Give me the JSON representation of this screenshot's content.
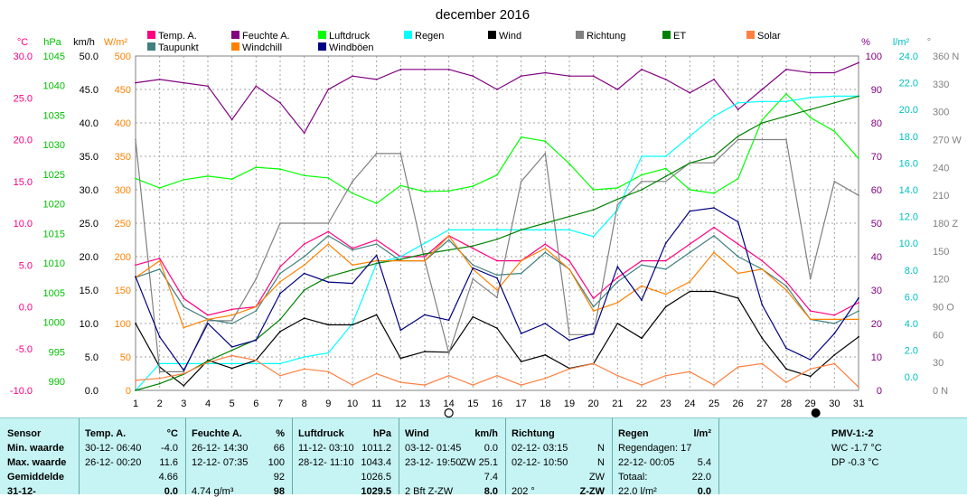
{
  "title": "december 2016",
  "legend": [
    {
      "label": "Temp. A.",
      "color": "#ff0080"
    },
    {
      "label": "Feuchte A.",
      "color": "#800080"
    },
    {
      "label": "Luftdruck",
      "color": "#00ff00"
    },
    {
      "label": "Regen",
      "color": "#00ffff"
    },
    {
      "label": "Wind",
      "color": "#000000"
    },
    {
      "label": "Richtung",
      "color": "#808080"
    },
    {
      "label": "ET",
      "color": "#008000"
    },
    {
      "label": "Solar",
      "color": "#ff8040"
    },
    {
      "label": "Taupunkt",
      "color": "#408080"
    },
    {
      "label": "Windchill",
      "color": "#ff8000"
    },
    {
      "label": "Windböen",
      "color": "#000080"
    }
  ],
  "axes": {
    "temp": {
      "unit": "°C",
      "color": "#ff0080",
      "ticks": [
        "30.0",
        "25.0",
        "20.0",
        "15.0",
        "10.0",
        "5.0",
        "0.0",
        "-5.0",
        "-10.0"
      ]
    },
    "hpa": {
      "unit": "hPa",
      "color": "#00c000",
      "ticks": [
        "1045",
        "1040",
        "1035",
        "1030",
        "1025",
        "1020",
        "1015",
        "1010",
        "1005",
        "1000",
        "995",
        "990"
      ]
    },
    "wind": {
      "unit": "km/h",
      "color": "#000000",
      "ticks": [
        "50.0",
        "45.0",
        "40.0",
        "35.0",
        "30.0",
        "25.0",
        "20.0",
        "15.0",
        "10.0",
        "5.0",
        "0.0"
      ]
    },
    "solar": {
      "unit": "W/m²",
      "color": "#ff8000",
      "ticks": [
        "500",
        "450",
        "400",
        "350",
        "300",
        "250",
        "200",
        "150",
        "100",
        "50",
        "0"
      ]
    },
    "pct": {
      "unit": "%",
      "color": "#800080",
      "ticks": [
        "100",
        "90",
        "80",
        "70",
        "60",
        "50",
        "40",
        "30",
        "20",
        "10",
        "0"
      ]
    },
    "rain": {
      "unit": "l/m²",
      "color": "#00c0c0",
      "ticks": [
        "24.0",
        "22.0",
        "20.0",
        "18.0",
        "16.0",
        "14.0",
        "12.0",
        "10.0",
        "8.0",
        "6.0",
        "4.0",
        "2.0",
        "0.0"
      ]
    },
    "dir": {
      "unit": "°",
      "color": "#808080",
      "ticks": [
        "360 N",
        "330",
        "300",
        "270 W",
        "240",
        "210",
        "180 Z",
        "150",
        "120",
        "90 O",
        "60",
        "30",
        "0 N"
      ]
    }
  },
  "chart_data": {
    "type": "line",
    "title": "december 2016",
    "x": [
      1,
      2,
      3,
      4,
      5,
      6,
      7,
      8,
      9,
      10,
      11,
      12,
      13,
      14,
      15,
      16,
      17,
      18,
      19,
      20,
      21,
      22,
      23,
      24,
      25,
      26,
      27,
      28,
      29,
      30,
      31
    ],
    "series": [
      {
        "name": "Temp. A.",
        "color": "#ff0080",
        "axis": "temp",
        "values": [
          5.0,
          5.8,
          1.0,
          -1.0,
          -0.3,
          0.0,
          4.8,
          7.5,
          9.0,
          7.0,
          8.0,
          6.0,
          6.0,
          8.5,
          7.0,
          5.5,
          5.5,
          7.5,
          5.5,
          1.0,
          3.5,
          5.5,
          5.5,
          7.5,
          9.5,
          7.5,
          5.5,
          3.0,
          -0.5,
          -1.0,
          0.5
        ]
      },
      {
        "name": "Feuchte A.",
        "color": "#800080",
        "axis": "pct",
        "values": [
          92,
          93,
          92,
          91,
          81,
          91,
          86,
          77,
          90,
          94,
          93,
          96,
          96,
          96,
          94,
          90,
          94,
          95,
          94,
          94,
          90,
          96,
          93,
          89,
          93,
          84,
          90,
          96,
          95,
          95,
          98
        ]
      },
      {
        "name": "Luftdruck",
        "color": "#00ff00",
        "axis": "hpa",
        "values": [
          1025.8,
          1024.2,
          1025.6,
          1026.2,
          1025.7,
          1027.7,
          1027.4,
          1026.3,
          1025.9,
          1023.3,
          1021.6,
          1024.6,
          1023.6,
          1023.7,
          1024.5,
          1026.4,
          1032.8,
          1032.1,
          1028.3,
          1023.9,
          1024.2,
          1026.4,
          1027.5,
          1023.9,
          1023.3,
          1025.8,
          1035.7,
          1040.1,
          1036.1,
          1033.8,
          1029.2
        ]
      },
      {
        "name": "Regen",
        "color": "#00ffff",
        "axis": "rain",
        "values": [
          0.0,
          2.0,
          2.0,
          2.0,
          2.0,
          2.0,
          2.0,
          2.5,
          2.8,
          5.0,
          9.5,
          10.0,
          11.0,
          12.0,
          12.0,
          12.0,
          12.0,
          12.0,
          12.0,
          11.5,
          13.5,
          17.5,
          17.5,
          19.0,
          20.5,
          21.5,
          21.6,
          21.6,
          21.9,
          22.0,
          22.0
        ]
      },
      {
        "name": "Wind",
        "color": "#000000",
        "axis": "wind",
        "values": [
          10.0,
          3.5,
          0.7,
          4.5,
          3.3,
          4.5,
          8.8,
          10.8,
          9.8,
          9.8,
          11.3,
          4.8,
          5.8,
          5.7,
          11.0,
          9.3,
          4.3,
          5.3,
          3.3,
          4.0,
          10.0,
          7.8,
          12.5,
          14.8,
          14.8,
          13.8,
          7.8,
          3.2,
          2.1,
          5.3,
          8.0
        ]
      },
      {
        "name": "Richtung",
        "color": "#808080",
        "axis": "dir",
        "values": [
          270,
          20,
          20,
          75,
          75,
          120,
          180,
          180,
          180,
          225,
          255,
          255,
          140,
          40,
          120,
          100,
          225,
          255,
          60,
          60,
          200,
          225,
          225,
          245,
          245,
          270,
          270,
          270,
          120,
          225,
          210
        ]
      },
      {
        "name": "ET",
        "color": "#008000",
        "axis": "ET",
        "values": [
          0.0,
          0.5,
          1.2,
          2.2,
          3.0,
          3.8,
          5.3,
          7.5,
          8.5,
          9.0,
          9.5,
          9.8,
          10.2,
          10.5,
          10.8,
          11.3,
          12.0,
          12.5,
          13.0,
          13.5,
          14.3,
          15.0,
          16.0,
          17.0,
          17.5,
          19.0,
          20.0,
          20.5,
          21.0,
          21.5,
          22.0
        ]
      },
      {
        "name": "Solar",
        "color": "#ff8040",
        "axis": "solar",
        "values": [
          15,
          18,
          25,
          42,
          52,
          45,
          22,
          32,
          28,
          8,
          25,
          12,
          8,
          22,
          8,
          22,
          8,
          18,
          32,
          40,
          22,
          8,
          22,
          28,
          8,
          35,
          40,
          12,
          32,
          40,
          5
        ]
      },
      {
        "name": "Taupunkt",
        "color": "#408080",
        "axis": "temp",
        "values": [
          3.5,
          4.5,
          0.0,
          -1.5,
          -2.0,
          -0.5,
          4.0,
          6.0,
          8.5,
          6.8,
          7.5,
          5.5,
          5.5,
          8.0,
          5.0,
          3.8,
          4.0,
          6.5,
          4.5,
          0.0,
          3.0,
          5.0,
          4.5,
          6.5,
          8.5,
          6.0,
          4.5,
          2.5,
          -1.5,
          -2.0,
          -0.5
        ]
      },
      {
        "name": "Windchill",
        "color": "#ff8000",
        "axis": "temp",
        "values": [
          3.5,
          5.5,
          -2.5,
          -1.5,
          -1.0,
          0.0,
          3.0,
          5.0,
          7.5,
          5.0,
          5.5,
          5.5,
          5.5,
          8.5,
          4.5,
          2.0,
          5.5,
          7.0,
          4.5,
          -0.5,
          0.5,
          2.5,
          1.5,
          3.0,
          6.5,
          4.0,
          4.5,
          2.0,
          -1.5,
          -1.5,
          -1.5
        ]
      },
      {
        "name": "Windböen",
        "color": "#000080",
        "axis": "wind",
        "values": [
          17.0,
          8.0,
          3.0,
          10.0,
          6.5,
          7.5,
          14.5,
          17.5,
          16.2,
          16.0,
          20.2,
          9.0,
          11.3,
          10.5,
          18.3,
          16.8,
          8.5,
          10.0,
          7.5,
          8.5,
          18.5,
          13.5,
          22.0,
          26.8,
          27.3,
          25.2,
          12.8,
          6.3,
          4.6,
          8.5,
          13.8
        ]
      }
    ],
    "xlim": [
      1,
      31
    ],
    "ylim_temp": [
      -10,
      30
    ],
    "ylim_hpa": [
      990,
      1046.5
    ],
    "ylim_wind": [
      0,
      50
    ],
    "ylim_solar": [
      0,
      500
    ],
    "ylim_pct": [
      0,
      100
    ],
    "ylim_rain": [
      0,
      25
    ],
    "ylim_dir": [
      0,
      360
    ],
    "grid": true,
    "markers": [
      {
        "day": 14,
        "symbol": "new-moon"
      },
      {
        "day": 29,
        "symbol": "full-moon"
      }
    ]
  },
  "summary": {
    "sensor": {
      "header": "Sensor",
      "rows": [
        "Min. waarde",
        "Max. waarde",
        "Gemiddelde",
        "31-12-"
      ]
    },
    "temp": {
      "header": "Temp. A.",
      "unit": "°C",
      "rows": [
        [
          "30-12- 06:40",
          "-4.0"
        ],
        [
          "26-12- 00:20",
          "11.6"
        ],
        [
          "",
          "4.66"
        ],
        [
          "",
          "0.0"
        ]
      ]
    },
    "hum": {
      "header": "Feuchte A.",
      "unit": "%",
      "rows": [
        [
          "26-12- 14:30",
          "66"
        ],
        [
          "12-12- 07:35",
          "100"
        ],
        [
          "",
          "92"
        ],
        [
          "4.74 g/m³",
          "98"
        ]
      ]
    },
    "press": {
      "header": "Luftdruck",
      "unit": "hPa",
      "rows": [
        [
          "11-12- 03:10",
          "1011.2"
        ],
        [
          "28-12- 11:10",
          "1043.4"
        ],
        [
          "",
          "1026.5"
        ],
        [
          "",
          "1029.5"
        ]
      ]
    },
    "wind": {
      "header": "Wind",
      "unit": "km/h",
      "rows": [
        [
          "03-12- 01:45",
          "0.0"
        ],
        [
          "23-12- 19:50",
          "ZW 25.1"
        ],
        [
          "",
          "7.4"
        ],
        [
          "2 Bft Z-ZW",
          "8.0"
        ]
      ]
    },
    "dir": {
      "header": "Richtung",
      "rows": [
        [
          "02-12- 03:15",
          "N"
        ],
        [
          "02-12- 10:50",
          "N"
        ],
        [
          "",
          "ZW"
        ],
        [
          "202 °",
          "Z-ZW"
        ]
      ]
    },
    "rain": {
      "header": "Regen",
      "unit": "l/m²",
      "rows": [
        [
          "Regendagen: 17",
          ""
        ],
        [
          "22-12- 00:05",
          "5.4"
        ],
        [
          "Totaal:",
          "22.0"
        ],
        [
          "22.0 l/m²",
          "0.0"
        ]
      ]
    },
    "pmv": {
      "header": "PMV-1:-2",
      "rows": [
        "WC -1.7 °C",
        "DP -0.3 °C"
      ]
    }
  }
}
